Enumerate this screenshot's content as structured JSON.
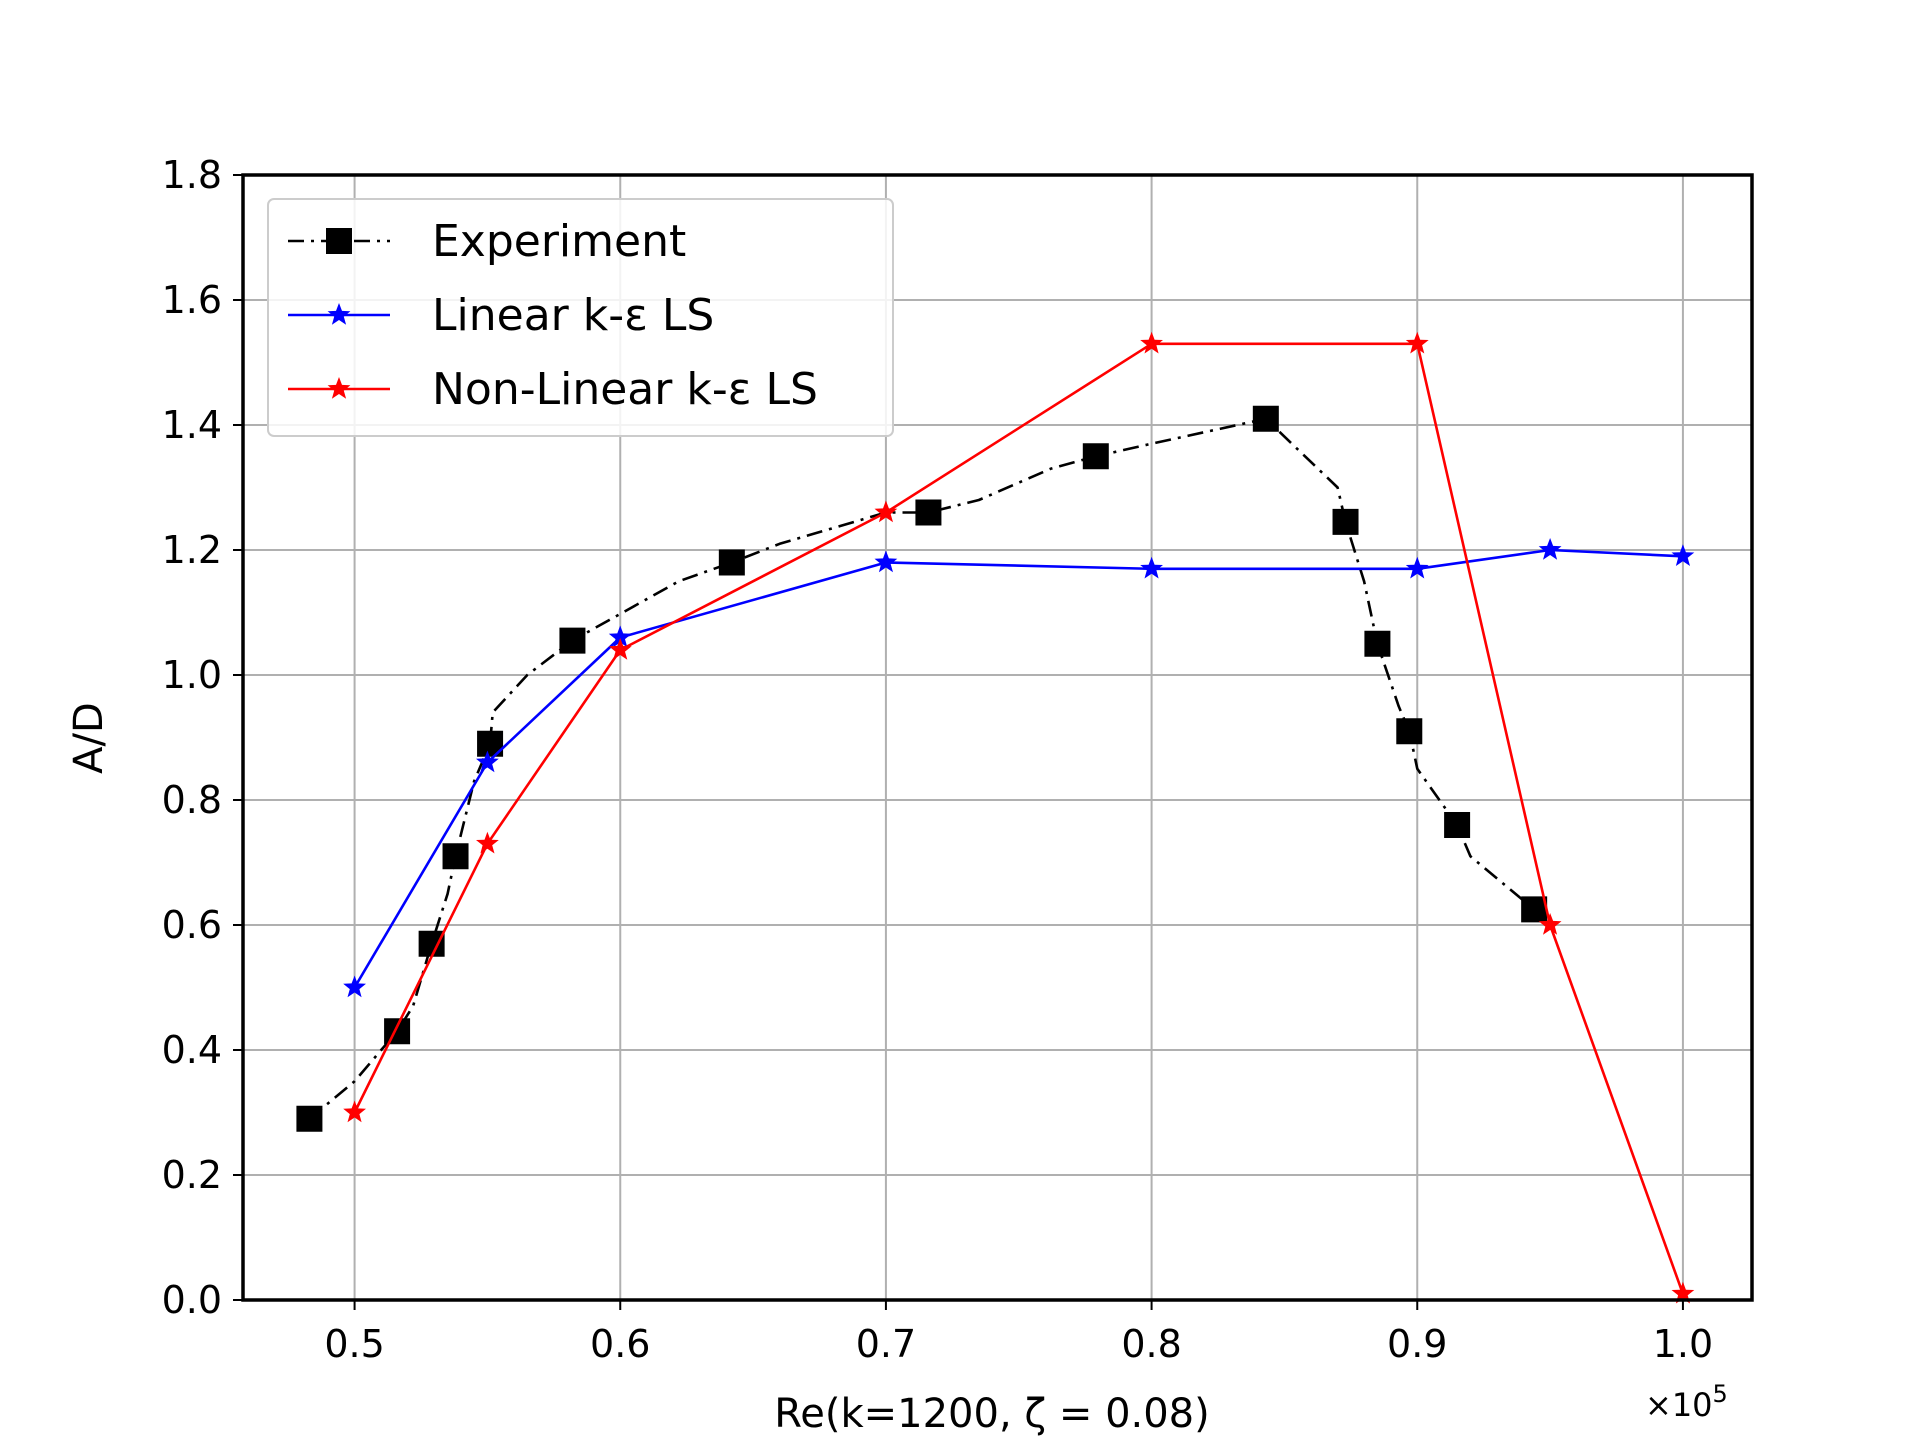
{
  "chart_data": {
    "type": "line",
    "title": "",
    "xlabel": "Re(k=1200, ζ = 0.08)",
    "ylabel": "A/D",
    "x_multiplier": "×10",
    "x_multiplier_exp": "5",
    "xlim": [
      0.458,
      1.026
    ],
    "ylim": [
      0.0,
      1.8
    ],
    "xticks": [
      "0.5",
      "0.6",
      "0.7",
      "0.8",
      "0.9",
      "1.0"
    ],
    "yticks": [
      "0.0",
      "0.2",
      "0.4",
      "0.6",
      "0.8",
      "1.0",
      "1.2",
      "1.4",
      "1.6",
      "1.8"
    ],
    "grid": true,
    "legend_position": "upper-left",
    "series": [
      {
        "name": "Experiment",
        "color": "#000000",
        "line_style": "dash-dot",
        "marker": "square",
        "line": [
          [
            0.483,
            0.29
          ],
          [
            0.5,
            0.35
          ],
          [
            0.516,
            0.43
          ],
          [
            0.522,
            0.47
          ],
          [
            0.529,
            0.57
          ],
          [
            0.535,
            0.65
          ],
          [
            0.538,
            0.71
          ],
          [
            0.545,
            0.83
          ],
          [
            0.551,
            0.89
          ],
          [
            0.552,
            0.94
          ],
          [
            0.565,
            1.0
          ],
          [
            0.582,
            1.055
          ],
          [
            0.622,
            1.15
          ],
          [
            0.642,
            1.18
          ],
          [
            0.66,
            1.21
          ],
          [
            0.7,
            1.26
          ],
          [
            0.716,
            1.26
          ],
          [
            0.735,
            1.28
          ],
          [
            0.762,
            1.33
          ],
          [
            0.779,
            1.35
          ],
          [
            0.8,
            1.37
          ],
          [
            0.843,
            1.41
          ],
          [
            0.87,
            1.3
          ],
          [
            0.873,
            1.245
          ],
          [
            0.88,
            1.15
          ],
          [
            0.885,
            1.05
          ],
          [
            0.893,
            0.95
          ],
          [
            0.897,
            0.91
          ],
          [
            0.9,
            0.85
          ],
          [
            0.915,
            0.76
          ],
          [
            0.92,
            0.71
          ],
          [
            0.944,
            0.625
          ]
        ],
        "markers": [
          [
            0.483,
            0.29
          ],
          [
            0.516,
            0.43
          ],
          [
            0.529,
            0.57
          ],
          [
            0.538,
            0.71
          ],
          [
            0.551,
            0.89
          ],
          [
            0.582,
            1.055
          ],
          [
            0.642,
            1.18
          ],
          [
            0.716,
            1.26
          ],
          [
            0.779,
            1.35
          ],
          [
            0.843,
            1.41
          ],
          [
            0.873,
            1.245
          ],
          [
            0.885,
            1.05
          ],
          [
            0.897,
            0.91
          ],
          [
            0.915,
            0.76
          ],
          [
            0.944,
            0.625
          ]
        ]
      },
      {
        "name": "Linear k-ε LS",
        "color": "#0000ff",
        "line_style": "solid",
        "marker": "star",
        "line": [
          [
            0.5,
            0.5
          ],
          [
            0.55,
            0.86
          ],
          [
            0.6,
            1.06
          ],
          [
            0.7,
            1.18
          ],
          [
            0.8,
            1.17
          ],
          [
            0.9,
            1.17
          ],
          [
            0.95,
            1.2
          ],
          [
            1.0,
            1.19
          ]
        ],
        "markers": [
          [
            0.5,
            0.5
          ],
          [
            0.55,
            0.86
          ],
          [
            0.6,
            1.06
          ],
          [
            0.7,
            1.18
          ],
          [
            0.8,
            1.17
          ],
          [
            0.9,
            1.17
          ],
          [
            0.95,
            1.2
          ],
          [
            1.0,
            1.19
          ]
        ]
      },
      {
        "name": "Non-Linear k-ε LS",
        "color": "#ff0000",
        "line_style": "solid",
        "marker": "star",
        "line": [
          [
            0.5,
            0.3
          ],
          [
            0.55,
            0.73
          ],
          [
            0.6,
            1.04
          ],
          [
            0.7,
            1.26
          ],
          [
            0.8,
            1.53
          ],
          [
            0.9,
            1.53
          ],
          [
            0.95,
            0.6
          ],
          [
            1.0,
            0.01
          ]
        ],
        "markers": [
          [
            0.5,
            0.3
          ],
          [
            0.55,
            0.73
          ],
          [
            0.6,
            1.04
          ],
          [
            0.7,
            1.26
          ],
          [
            0.8,
            1.53
          ],
          [
            0.9,
            1.53
          ],
          [
            0.95,
            0.6
          ],
          [
            1.0,
            0.01
          ]
        ]
      }
    ]
  }
}
